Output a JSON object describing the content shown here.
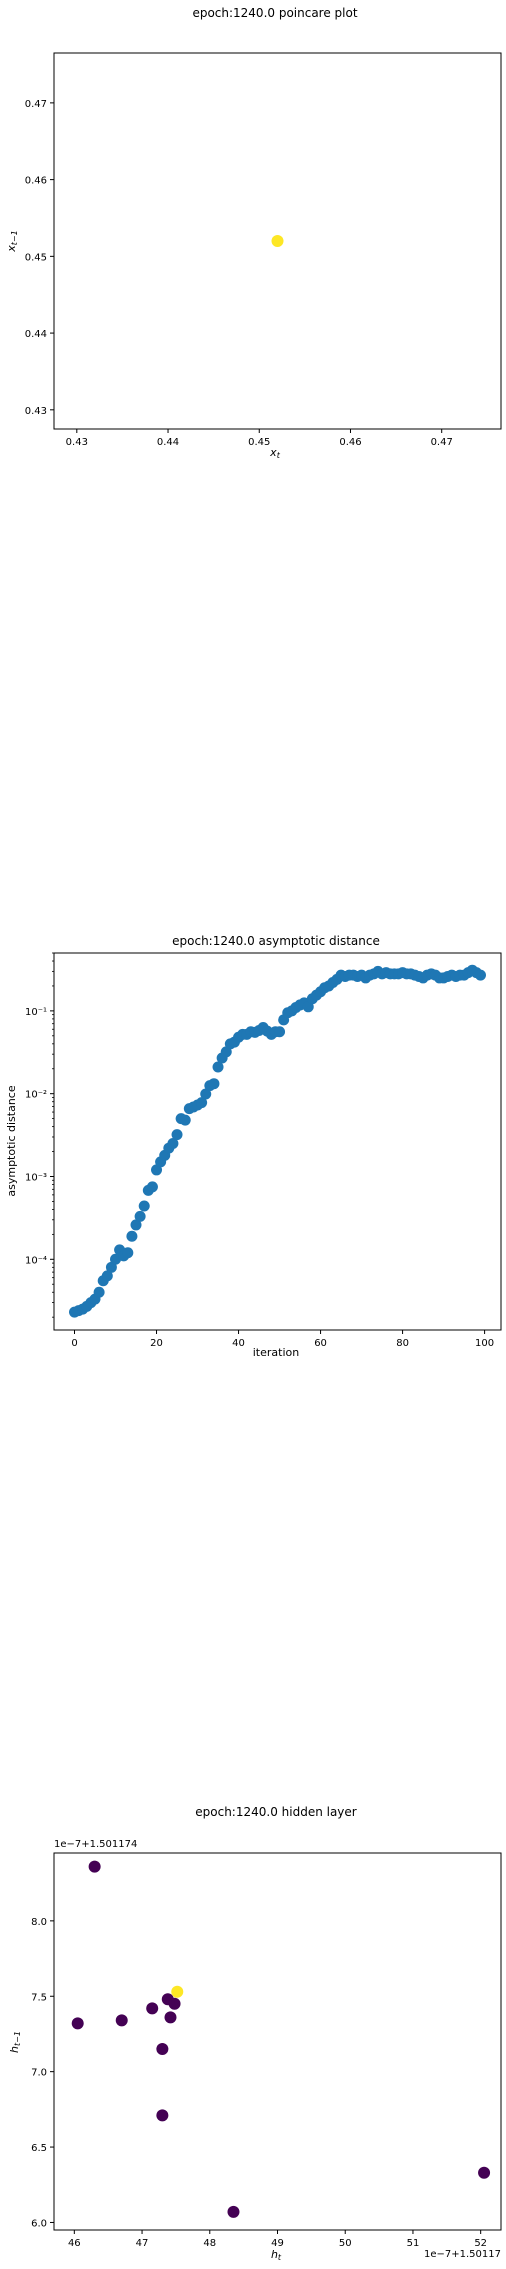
{
  "chart_data": [
    {
      "type": "scatter",
      "title": "epoch:1240.0 poincare plot",
      "xlabel": "x_t",
      "ylabel": "x_{t-1}",
      "xlim": [
        0.4275,
        0.4765
      ],
      "ylim": [
        0.4275,
        0.4765
      ],
      "xticks": [
        0.43,
        0.44,
        0.45,
        0.46,
        0.47
      ],
      "yticks": [
        0.43,
        0.44,
        0.45,
        0.46,
        0.47
      ],
      "xtick_labels": [
        "0.43",
        "0.44",
        "0.45",
        "0.46",
        "0.47"
      ],
      "ytick_labels": [
        "0.43",
        "0.44",
        "0.45",
        "0.46",
        "0.47"
      ],
      "grid": false,
      "points": [
        {
          "x": 0.452,
          "y": 0.452,
          "color": "#fde725"
        }
      ]
    },
    {
      "type": "scatter",
      "title": "epoch:1240.0 asymptotic distance",
      "xlabel": "iteration",
      "ylabel": "asymptotic distance",
      "yscale": "log",
      "xlim": [
        -5,
        104
      ],
      "ylim": [
        1.4e-05,
        0.5
      ],
      "xticks": [
        0,
        20,
        40,
        60,
        80,
        100
      ],
      "xtick_labels": [
        "0",
        "20",
        "40",
        "60",
        "80",
        "100"
      ],
      "yticks": [
        0.0001,
        0.001,
        0.01,
        0.1
      ],
      "ytick_labels": [
        "10⁻⁴",
        "10⁻³",
        "10⁻²",
        "10⁻¹"
      ],
      "grid": false,
      "color": "#1f77b4",
      "x": [
        0,
        1,
        2,
        3,
        4,
        5,
        6,
        7,
        8,
        9,
        10,
        11,
        12,
        13,
        14,
        15,
        16,
        17,
        18,
        19,
        20,
        21,
        22,
        23,
        24,
        25,
        26,
        27,
        28,
        29,
        30,
        31,
        32,
        33,
        34,
        35,
        36,
        37,
        38,
        39,
        40,
        41,
        42,
        43,
        44,
        45,
        46,
        47,
        48,
        49,
        50,
        51,
        52,
        53,
        54,
        55,
        56,
        57,
        58,
        59,
        60,
        61,
        62,
        63,
        64,
        65,
        66,
        67,
        68,
        69,
        70,
        71,
        72,
        73,
        74,
        75,
        76,
        77,
        78,
        79,
        80,
        81,
        82,
        83,
        84,
        85,
        86,
        87,
        88,
        89,
        90,
        91,
        92,
        93,
        94,
        95,
        96,
        97,
        98,
        99
      ],
      "y": [
        2.3e-05,
        2.4e-05,
        2.5e-05,
        2.7e-05,
        3e-05,
        3.3e-05,
        4e-05,
        5.5e-05,
        6.3e-05,
        8e-05,
        0.0001,
        0.00013,
        0.00011,
        0.00012,
        0.00019,
        0.00026,
        0.00033,
        0.00044,
        0.00068,
        0.00075,
        0.0012,
        0.0015,
        0.0018,
        0.0022,
        0.0025,
        0.0032,
        0.005,
        0.0048,
        0.0066,
        0.0069,
        0.0073,
        0.0078,
        0.0099,
        0.0125,
        0.0132,
        0.021,
        0.027,
        0.032,
        0.04,
        0.042,
        0.048,
        0.052,
        0.052,
        0.056,
        0.055,
        0.058,
        0.063,
        0.057,
        0.052,
        0.056,
        0.056,
        0.078,
        0.095,
        0.1,
        0.11,
        0.118,
        0.125,
        0.112,
        0.14,
        0.155,
        0.17,
        0.19,
        0.2,
        0.22,
        0.24,
        0.27,
        0.26,
        0.27,
        0.27,
        0.26,
        0.27,
        0.25,
        0.27,
        0.28,
        0.3,
        0.28,
        0.29,
        0.28,
        0.28,
        0.28,
        0.29,
        0.28,
        0.28,
        0.27,
        0.26,
        0.25,
        0.27,
        0.28,
        0.27,
        0.25,
        0.25,
        0.26,
        0.27,
        0.26,
        0.27,
        0.27,
        0.29,
        0.31,
        0.29,
        0.27
      ]
    },
    {
      "type": "scatter",
      "title": "epoch:1240.0 hidden layer",
      "xlabel": "h_t",
      "ylabel": "h_{t-1}",
      "x_offset_text": "1e−7+1.50117",
      "y_offset_text": "1e−7+1.501174",
      "xlim": [
        45.7,
        52.3
      ],
      "ylim": [
        5.95,
        8.45
      ],
      "xticks": [
        46,
        47,
        48,
        49,
        50,
        51,
        52
      ],
      "xtick_labels": [
        "46",
        "47",
        "48",
        "49",
        "50",
        "51",
        "52"
      ],
      "yticks": [
        6.0,
        6.5,
        7.0,
        7.5,
        8.0
      ],
      "ytick_labels": [
        "6.0",
        "6.5",
        "7.0",
        "7.5",
        "8.0"
      ],
      "grid": false,
      "points": [
        {
          "x": 46.05,
          "y": 7.32,
          "color": "#440154"
        },
        {
          "x": 46.3,
          "y": 8.36,
          "color": "#440154"
        },
        {
          "x": 46.7,
          "y": 7.34,
          "color": "#440154"
        },
        {
          "x": 47.15,
          "y": 7.42,
          "color": "#440154"
        },
        {
          "x": 47.3,
          "y": 7.15,
          "color": "#440154"
        },
        {
          "x": 47.3,
          "y": 6.71,
          "color": "#440154"
        },
        {
          "x": 47.38,
          "y": 7.48,
          "color": "#440154"
        },
        {
          "x": 47.42,
          "y": 7.36,
          "color": "#440154"
        },
        {
          "x": 47.48,
          "y": 7.45,
          "color": "#440154"
        },
        {
          "x": 47.52,
          "y": 7.53,
          "color": "#fde725"
        },
        {
          "x": 48.35,
          "y": 6.07,
          "color": "#440154"
        },
        {
          "x": 52.05,
          "y": 6.33,
          "color": "#440154"
        }
      ]
    }
  ]
}
